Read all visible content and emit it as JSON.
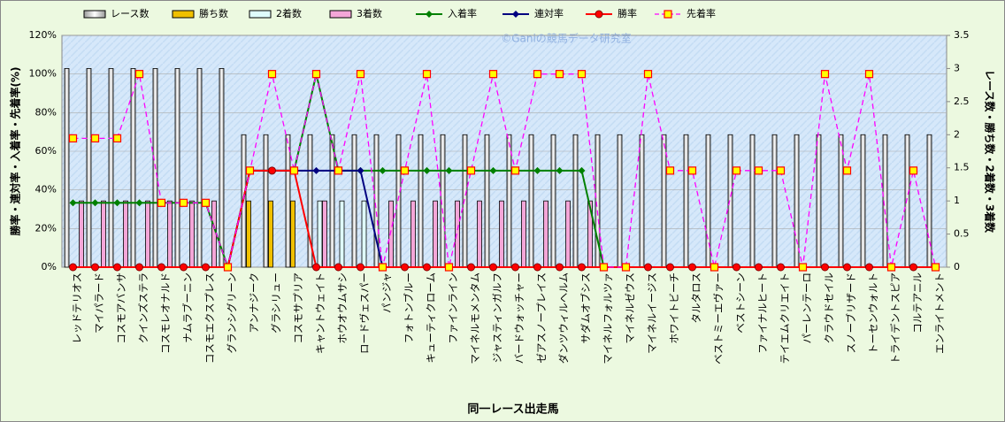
{
  "chart_data": {
    "type": "bar",
    "watermark": "©Ganiの競馬データ研究室",
    "x_label": "同一レース出走馬",
    "y_label": "勝率・連対率・入着率・先着率(%)",
    "y2_label": "レース数・勝ち数・2着数・3着数",
    "legend": "top",
    "categories": [
      "レッドテリオス",
      "マイパラード",
      "コスモアバンサ",
      "クインズステラ",
      "コスモレオナルド",
      "ナムラブーニン",
      "コスモエクスプレス",
      "グランシグリーン",
      "アンナジーク",
      "グラシリュー",
      "コスモサプリア",
      "キャントウェイト",
      "ホウオウムサシ",
      "ロードヴェスパー",
      "パンジャ",
      "フォトンブルー",
      "キューティクローム",
      "ファインライン",
      "マイネルモメンタム",
      "ジャスティンガルフ",
      "バードウォッチャー",
      "ゼアスノープレイス",
      "ダンツウィルヘルム",
      "サダムオブシス",
      "マイネルフォルツァ",
      "マイネルゼウス",
      "マイネルイージス",
      "ホワイトビーチ",
      "タルタロス",
      "ベストミーエヴァー",
      "ベストシーン",
      "ファイナルヒート",
      "テイエムクリエイト",
      "パーレンテーロ",
      "クラウドセイル",
      "スノーブリザード",
      "トーセンウォルト",
      "トライデントスピア",
      "コルテアニル",
      "エンライトメント"
    ],
    "ylim": [
      0,
      120
    ],
    "yticks": [
      {
        "value": 0,
        "label": "0%"
      },
      {
        "value": 20,
        "label": "20%"
      },
      {
        "value": 40,
        "label": "40%"
      },
      {
        "value": 60,
        "label": "60%"
      },
      {
        "value": 80,
        "label": "80%"
      },
      {
        "value": 100,
        "label": "100%"
      },
      {
        "value": 120,
        "label": "120%"
      }
    ],
    "y2lim": [
      0,
      3.5
    ],
    "y2ticks": [
      0,
      0.5,
      1,
      1.5,
      2,
      2.5,
      3,
      3.5
    ],
    "grid": true,
    "series": [
      {
        "name": "レース数",
        "type": "bar",
        "axis": "y2",
        "color": "#ffffff",
        "values": [
          3,
          3,
          3,
          3,
          3,
          3,
          3,
          3,
          2,
          2,
          2,
          2,
          2,
          2,
          2,
          2,
          2,
          2,
          2,
          2,
          2,
          2,
          2,
          2,
          2,
          2,
          2,
          2,
          2,
          2,
          2,
          2,
          2,
          2,
          2,
          2,
          2,
          2,
          2,
          2
        ]
      },
      {
        "name": "勝ち数",
        "type": "bar",
        "axis": "y2",
        "color": "#f0c000",
        "values": [
          0,
          0,
          0,
          0,
          0,
          0,
          0,
          0,
          1,
          1,
          1,
          0,
          0,
          0,
          0,
          0,
          0,
          0,
          0,
          0,
          0,
          0,
          0,
          0,
          0,
          0,
          0,
          0,
          0,
          0,
          0,
          0,
          0,
          0,
          0,
          0,
          0,
          0,
          0,
          0
        ]
      },
      {
        "name": "2着数",
        "type": "bar",
        "axis": "y2",
        "color": "#dffcfc",
        "values": [
          0,
          0,
          0,
          0,
          0,
          0,
          0,
          0,
          0,
          0,
          0,
          1,
          1,
          1,
          0,
          0,
          0,
          0,
          0,
          0,
          0,
          0,
          0,
          0,
          0,
          0,
          0,
          0,
          0,
          0,
          0,
          0,
          0,
          0,
          0,
          0,
          0,
          0,
          0,
          0
        ]
      },
      {
        "name": "3着数",
        "type": "bar",
        "axis": "y2",
        "color": "#f4a6d8",
        "values": [
          1,
          1,
          1,
          1,
          1,
          1,
          1,
          0,
          0,
          0,
          0,
          1,
          0,
          0,
          1,
          1,
          1,
          1,
          1,
          1,
          1,
          1,
          1,
          1,
          0,
          0,
          0,
          0,
          0,
          0,
          0,
          0,
          0,
          0,
          0,
          0,
          0,
          0,
          0,
          0
        ]
      },
      {
        "name": "入着率",
        "type": "line",
        "color": "#008000",
        "marker": "diamond",
        "values": [
          33.3,
          33.3,
          33.3,
          33.3,
          33.3,
          33.3,
          33.3,
          0,
          50,
          50,
          50,
          100,
          50,
          50,
          50,
          50,
          50,
          50,
          50,
          50,
          50,
          50,
          50,
          50,
          0,
          0,
          0,
          0,
          0,
          0,
          0,
          0,
          0,
          0,
          0,
          0,
          0,
          0,
          0,
          0
        ]
      },
      {
        "name": "連対率",
        "type": "line",
        "color": "#000080",
        "marker": "diamond",
        "values": [
          0,
          0,
          0,
          0,
          0,
          0,
          0,
          0,
          50,
          50,
          50,
          50,
          50,
          50,
          0,
          0,
          0,
          0,
          0,
          0,
          0,
          0,
          0,
          0,
          0,
          0,
          0,
          0,
          0,
          0,
          0,
          0,
          0,
          0,
          0,
          0,
          0,
          0,
          0,
          0
        ]
      },
      {
        "name": "勝率",
        "type": "line",
        "color": "#ff0000",
        "marker": "circle",
        "values": [
          0,
          0,
          0,
          0,
          0,
          0,
          0,
          0,
          50,
          50,
          50,
          0,
          0,
          0,
          0,
          0,
          0,
          0,
          0,
          0,
          0,
          0,
          0,
          0,
          0,
          0,
          0,
          0,
          0,
          0,
          0,
          0,
          0,
          0,
          0,
          0,
          0,
          0,
          0,
          0
        ]
      },
      {
        "name": "先着率",
        "type": "line",
        "color": "#ff00ff",
        "marker": "square",
        "dashed": true,
        "values": [
          66.7,
          66.7,
          66.7,
          100,
          33.3,
          33.3,
          33.3,
          0,
          50,
          100,
          50,
          100,
          50,
          100,
          0,
          50,
          100,
          0,
          50,
          100,
          50,
          100,
          100,
          100,
          0,
          0,
          100,
          50,
          50,
          0,
          50,
          50,
          50,
          0,
          100,
          50,
          100,
          0,
          50,
          0
        ]
      }
    ]
  }
}
